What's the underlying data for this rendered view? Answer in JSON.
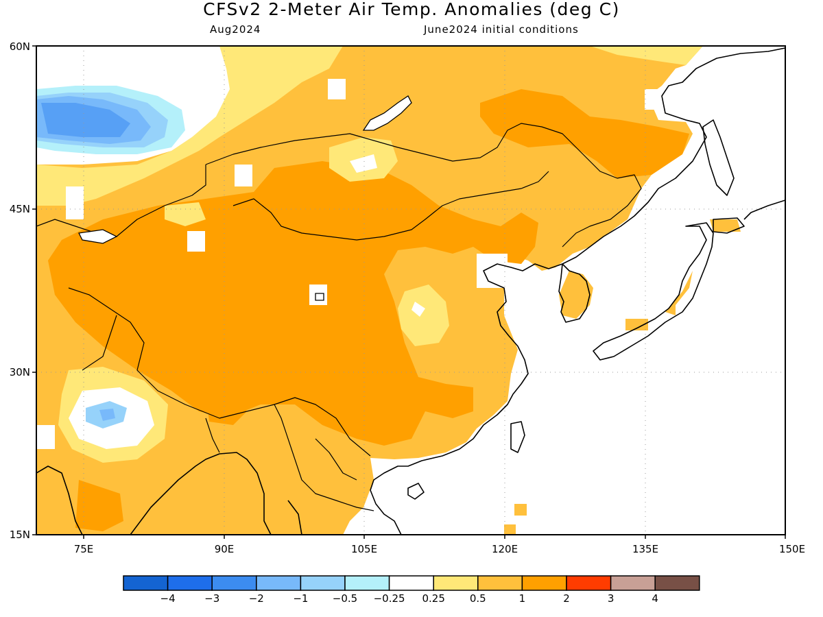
{
  "header": {
    "title": "CFSv2 2-Meter Air Temp. Anomalies (deg C)",
    "subtitle_left": "Aug2024",
    "subtitle_right": "June2024 initial conditions"
  },
  "map": {
    "lat_labels": [
      "60N",
      "45N",
      "30N",
      "15N"
    ],
    "lon_labels": [
      "75E",
      "90E",
      "105E",
      "120E",
      "135E",
      "150E"
    ],
    "extent": {
      "lon_min": 70,
      "lon_max": 150,
      "lat_min": 15,
      "lat_max": 60
    },
    "grid_lons": [
      75,
      90,
      105,
      120,
      135
    ],
    "grid_lats": [
      45,
      30
    ],
    "ocean_color": "#ffffff",
    "coast_color": "#000000"
  },
  "colorbar": {
    "colors": [
      "#1464d2",
      "#1e6eeb",
      "#3c8cf0",
      "#78b9fa",
      "#96d2fa",
      "#b4f0fa",
      "#ffffff",
      "#ffe878",
      "#ffc03c",
      "#ffa000",
      "#ff3c00",
      "#c8a096",
      "#785046"
    ],
    "labels": [
      "−4",
      "−3",
      "−2",
      "−1",
      "−0.5",
      "−0.25",
      "0.25",
      "0.5",
      "1",
      "2",
      "3",
      "4"
    ]
  }
}
